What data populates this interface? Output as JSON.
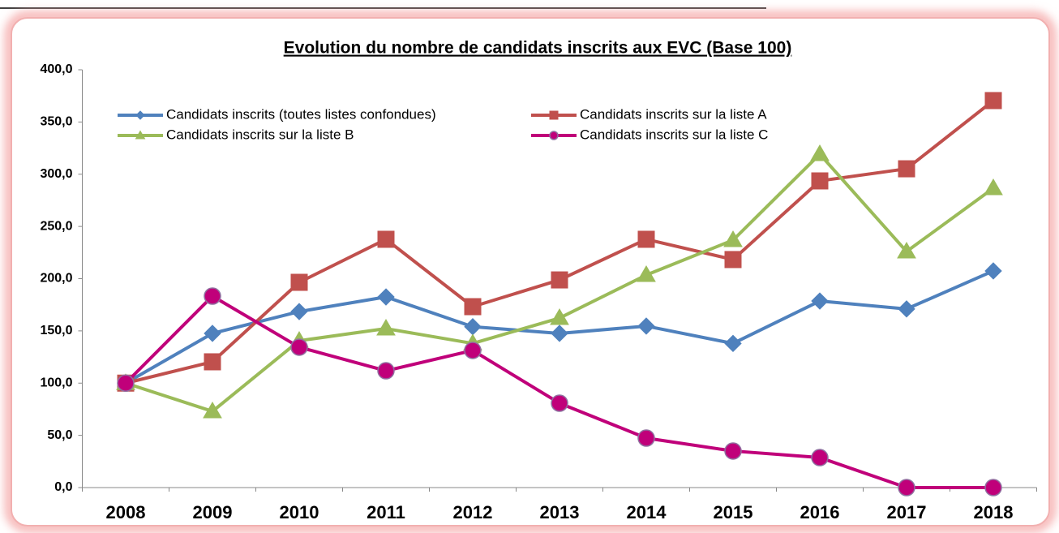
{
  "chart_data": {
    "type": "line",
    "title": "Evolution du nombre de candidats inscrits aux EVC (Base 100)",
    "categories": [
      "2008",
      "2009",
      "2010",
      "2011",
      "2012",
      "2013",
      "2014",
      "2015",
      "2016",
      "2017",
      "2018"
    ],
    "series": [
      {
        "name": "Candidats inscrits (toutes listes confondues)",
        "color": "#4f81bd",
        "marker": "diamond",
        "values": [
          100,
          147.6,
          168.5,
          182.5,
          154,
          147.6,
          154.6,
          138,
          178.6,
          171,
          207.4
        ]
      },
      {
        "name": "Candidats inscrits sur la liste A",
        "color": "#c0504d",
        "marker": "square",
        "values": [
          100,
          120.4,
          196.5,
          237.7,
          173.2,
          198.8,
          237.7,
          218.3,
          293.6,
          305.2,
          370.5
        ]
      },
      {
        "name": "Candidats inscrits sur la liste B",
        "color": "#9bbb59",
        "marker": "triangle",
        "values": [
          100,
          73,
          140.6,
          152.2,
          138,
          162.3,
          203.5,
          236.9,
          319.2,
          226,
          286.6
        ]
      },
      {
        "name": "Candidats inscrits sur la liste C",
        "color": "#c0007a",
        "marker": "circle",
        "values": [
          100,
          183.3,
          134.4,
          111.8,
          131.3,
          80.8,
          47.4,
          35,
          28.7,
          0,
          0
        ]
      }
    ],
    "ylim": [
      0,
      400
    ],
    "yticks": [
      {
        "value": 0,
        "label": "0,0"
      },
      {
        "value": 50,
        "label": "50,0"
      },
      {
        "value": 100,
        "label": "100,0"
      },
      {
        "value": 150,
        "label": "150,0"
      },
      {
        "value": 200,
        "label": "200,0"
      },
      {
        "value": 250,
        "label": "250,0"
      },
      {
        "value": 300,
        "label": "300,0"
      },
      {
        "value": 350,
        "label": "350,0"
      },
      {
        "value": 400,
        "label": "400,0"
      }
    ],
    "legend": "top-left"
  }
}
